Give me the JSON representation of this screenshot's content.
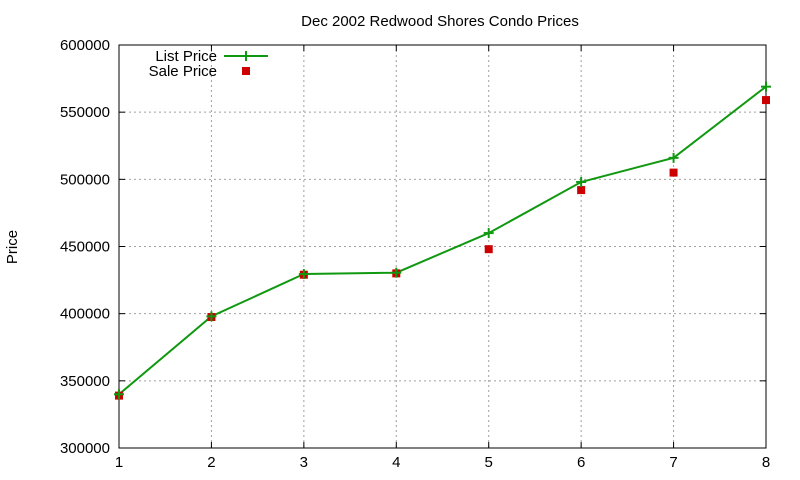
{
  "chart_data": {
    "type": "line",
    "title": "Dec 2002 Redwood Shores Condo Prices",
    "xlabel": "",
    "ylabel": "Price",
    "x": [
      1,
      2,
      3,
      4,
      5,
      6,
      7,
      8
    ],
    "xlim": [
      1,
      8
    ],
    "ylim": [
      300000,
      600000
    ],
    "xticks": [
      "1",
      "2",
      "3",
      "4",
      "5",
      "6",
      "7",
      "8"
    ],
    "yticks": [
      "300000",
      "350000",
      "400000",
      "450000",
      "500000",
      "550000",
      "600000"
    ],
    "grid": true,
    "legend_position": "top-left",
    "series": [
      {
        "name": "List Price",
        "style": "line-plus",
        "color": "#109910",
        "values": [
          340000,
          398000,
          429500,
          430500,
          460000,
          498000,
          516000,
          569000
        ]
      },
      {
        "name": "Sale Price",
        "style": "square",
        "color": "#cc0000",
        "values": [
          339000,
          397500,
          429000,
          430000,
          448000,
          492000,
          505000,
          559000
        ]
      }
    ]
  }
}
